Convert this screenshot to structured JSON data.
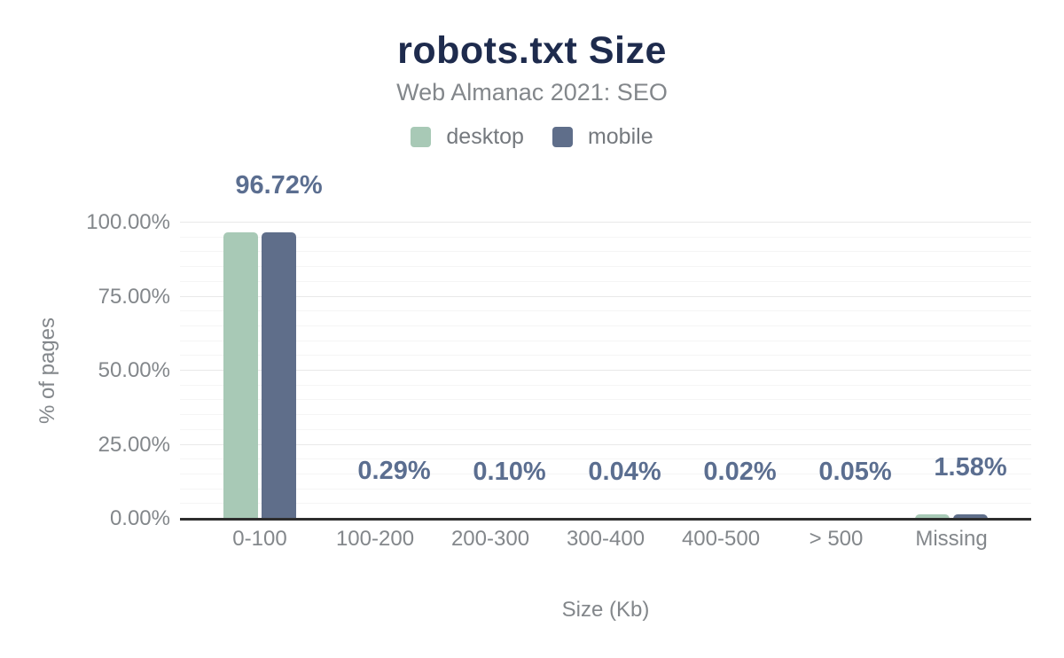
{
  "chart_data": {
    "type": "bar",
    "title": "robots.txt Size",
    "subtitle": "Web Almanac 2021: SEO",
    "xlabel": "Size (Kb)",
    "ylabel": "% of pages",
    "categories": [
      "0-100",
      "100-200",
      "200-300",
      "300-400",
      "400-500",
      "> 500",
      "Missing"
    ],
    "series": [
      {
        "name": "desktop",
        "color": "#a8c9b6",
        "values": [
          96.72,
          0.29,
          0.1,
          0.04,
          0.02,
          0.05,
          1.58
        ]
      },
      {
        "name": "mobile",
        "color": "#5f6e8a",
        "values": [
          96.72,
          0.29,
          0.1,
          0.04,
          0.02,
          0.05,
          1.58
        ]
      }
    ],
    "annotations": [
      "96.72%",
      "0.29%",
      "0.10%",
      "0.04%",
      "0.02%",
      "0.05%",
      "1.58%"
    ],
    "annotation_over_series": "mobile",
    "y_ticks": [
      "0.00%",
      "25.00%",
      "50.00%",
      "75.00%",
      "100.00%"
    ],
    "ylim": [
      0,
      100
    ],
    "grid": {
      "major_every_pct": 25,
      "minor_every_pct": 5
    },
    "legend_position": "top",
    "colors": {
      "title": "#1e2b4d",
      "subtitle": "#83878b",
      "annotation": "#5b6e90",
      "axis_line": "#2e2e2e",
      "tick_label": "#83878b",
      "grid_major": "#e9e9e9",
      "grid_minor": "#f5f5f5",
      "background": "#ffffff"
    }
  }
}
